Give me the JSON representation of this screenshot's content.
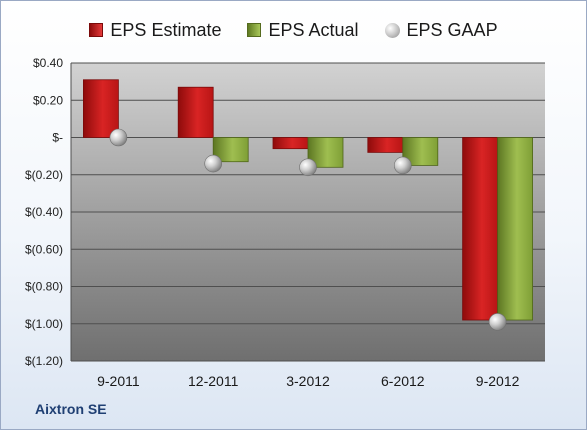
{
  "chart_data": {
    "type": "bar",
    "categories": [
      "9-2011",
      "12-2011",
      "3-2012",
      "6-2012",
      "9-2012"
    ],
    "series": [
      {
        "name": "EPS Estimate",
        "values": [
          0.31,
          0.27,
          -0.06,
          -0.08,
          -0.98
        ],
        "color": "#c4161c"
      },
      {
        "name": "EPS Actual",
        "values": [
          null,
          -0.13,
          -0.16,
          -0.15,
          -0.98
        ],
        "color": "#8db33c"
      },
      {
        "name": "EPS GAAP",
        "values": [
          0.0,
          -0.14,
          -0.16,
          -0.15,
          -0.99
        ],
        "color": "#b5b5b5",
        "marker": "sphere"
      }
    ],
    "ylim": [
      -1.2,
      0.4
    ],
    "y_ticks": [
      {
        "value": 0.4,
        "label": "$0.40"
      },
      {
        "value": 0.2,
        "label": "$0.20"
      },
      {
        "value": 0.0,
        "label": "$-"
      },
      {
        "value": -0.2,
        "label": "$(0.20)"
      },
      {
        "value": -0.4,
        "label": "$(0.40)"
      },
      {
        "value": -0.6,
        "label": "$(0.60)"
      },
      {
        "value": -0.8,
        "label": "$(0.80)"
      },
      {
        "value": -1.0,
        "label": "$(1.00)"
      },
      {
        "value": -1.2,
        "label": "$(1.20)"
      }
    ],
    "grid": true,
    "legend_position": "top-center"
  },
  "footer": {
    "company": "Aixtron SE"
  }
}
